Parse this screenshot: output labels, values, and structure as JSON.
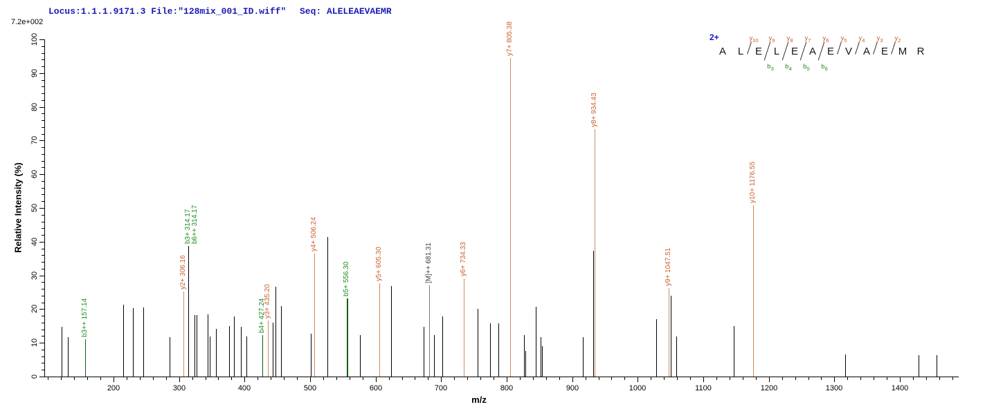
{
  "header": {
    "locus_file": "Locus:1.1.1.9171.3 File:\"128mix_001_ID.wiff\"",
    "seq": "Seq: ALELEAEVAEMR",
    "max_intensity": "7.2e+002"
  },
  "colors": {
    "header_blue": "#1b1bb4",
    "charge_blue": "#1414d2",
    "peak_black": "#000000",
    "y_label": "#c8602a",
    "y_stem": "#cf8a5a",
    "b_label": "#1e8a1e",
    "b_stem": "#0a600a",
    "precursor_label": "#3c3c3c",
    "precursor_stem": "#777777",
    "y_seq_label": "#cc5533",
    "b_seq_label": "#1e8a1e"
  },
  "chart_data": {
    "type": "bar",
    "title": "",
    "xlabel": "m/z",
    "ylabel": "Relative  Intensity (%)",
    "x_range": [
      95,
      1490
    ],
    "x_major_tick_start": 200,
    "x_major_tick_end": 1400,
    "x_major_tick_step": 100,
    "x_minor_tick_step": 20,
    "y_range": [
      0,
      100
    ],
    "y_major_tick_step": 10,
    "y_minor_tick_step": 2,
    "full_scale_counts": "7.2e+002",
    "legend": "none",
    "grid": "off",
    "peaks": [
      {
        "mz": 121.0,
        "intensity": 14.8
      },
      {
        "mz": 130.0,
        "intensity": 11.7
      },
      {
        "mz": 157.14,
        "intensity": 11.0,
        "ion": "b",
        "label": "b3++ 157.14"
      },
      {
        "mz": 215.0,
        "intensity": 21.3
      },
      {
        "mz": 230.0,
        "intensity": 20.2
      },
      {
        "mz": 245.0,
        "intensity": 20.5
      },
      {
        "mz": 286.0,
        "intensity": 11.6
      },
      {
        "mz": 306.16,
        "intensity": 25.2,
        "ion": "y",
        "label": "y2+ 306.16"
      },
      {
        "mz": 314.17,
        "intensity": 38.7,
        "ion": "b",
        "stem": "black",
        "label": "b3+ 314.17",
        "label2": "b6++ 314.17"
      },
      {
        "mz": 324.0,
        "intensity": 18.2
      },
      {
        "mz": 327.0,
        "intensity": 18.2
      },
      {
        "mz": 344.0,
        "intensity": 18.5
      },
      {
        "mz": 347.0,
        "intensity": 11.8
      },
      {
        "mz": 356.0,
        "intensity": 14.2
      },
      {
        "mz": 376.0,
        "intensity": 15.0
      },
      {
        "mz": 384.0,
        "intensity": 17.8
      },
      {
        "mz": 394.0,
        "intensity": 14.8
      },
      {
        "mz": 403.0,
        "intensity": 11.9
      },
      {
        "mz": 427.24,
        "intensity": 12.3,
        "ion": "b",
        "label": "b4+ 427.24"
      },
      {
        "mz": 435.2,
        "intensity": 16.5,
        "ion": "y",
        "label": "y3+ 435.20"
      },
      {
        "mz": 443.0,
        "intensity": 16.0
      },
      {
        "mz": 447.0,
        "intensity": 26.6
      },
      {
        "mz": 456.0,
        "intensity": 20.9
      },
      {
        "mz": 501.0,
        "intensity": 12.7
      },
      {
        "mz": 506.24,
        "intensity": 36.5,
        "ion": "y",
        "label": "y4+ 506.24"
      },
      {
        "mz": 526.0,
        "intensity": 41.4
      },
      {
        "mz": 556.3,
        "intensity": 23.2,
        "ion": "b",
        "wide": true,
        "label": "b5+ 556.30"
      },
      {
        "mz": 576.0,
        "intensity": 12.3
      },
      {
        "mz": 605.3,
        "intensity": 27.7,
        "ion": "y",
        "label": "y5+ 605.30"
      },
      {
        "mz": 624.0,
        "intensity": 26.8
      },
      {
        "mz": 673.0,
        "intensity": 14.7
      },
      {
        "mz": 681.31,
        "intensity": 27.0,
        "ion": "M",
        "label": "[M]++ 681.31"
      },
      {
        "mz": 689.0,
        "intensity": 12.3
      },
      {
        "mz": 702.0,
        "intensity": 17.8
      },
      {
        "mz": 734.33,
        "intensity": 29.0,
        "ion": "y",
        "label": "y6+ 734.33"
      },
      {
        "mz": 756.0,
        "intensity": 20.1
      },
      {
        "mz": 775.0,
        "intensity": 15.8
      },
      {
        "mz": 787.0,
        "intensity": 15.8
      },
      {
        "mz": 805.38,
        "intensity": 94.5,
        "ion": "y",
        "label": "y7+ 805.38"
      },
      {
        "mz": 826.5,
        "intensity": 12.3
      },
      {
        "mz": 828.5,
        "intensity": 7.6
      },
      {
        "mz": 844.0,
        "intensity": 20.7
      },
      {
        "mz": 851.5,
        "intensity": 11.6
      },
      {
        "mz": 853.5,
        "intensity": 9.0
      },
      {
        "mz": 916.0,
        "intensity": 11.6
      },
      {
        "mz": 932.0,
        "intensity": 37.3
      },
      {
        "mz": 934.43,
        "intensity": 73.4,
        "ion": "y",
        "label": "y8+ 934.43"
      },
      {
        "mz": 1028.0,
        "intensity": 17.0
      },
      {
        "mz": 1047.51,
        "intensity": 26.2,
        "ion": "y",
        "label": "y9+ 1047.51"
      },
      {
        "mz": 1050.0,
        "intensity": 24.0
      },
      {
        "mz": 1059.0,
        "intensity": 11.9
      },
      {
        "mz": 1146.0,
        "intensity": 15.0
      },
      {
        "mz": 1176.55,
        "intensity": 50.8,
        "ion": "y",
        "label": "y10+ 1176.55"
      },
      {
        "mz": 1316.0,
        "intensity": 6.6
      },
      {
        "mz": 1428.0,
        "intensity": 6.4
      },
      {
        "mz": 1456.0,
        "intensity": 6.4
      }
    ]
  },
  "sequence_panel": {
    "charge_label": "2+",
    "residues": [
      "A",
      "L",
      "E",
      "L",
      "E",
      "A",
      "E",
      "V",
      "A",
      "E",
      "M",
      "R"
    ],
    "y_ions": [
      {
        "after_residue": 2,
        "label": "y",
        "sub": "10"
      },
      {
        "after_residue": 3,
        "label": "y",
        "sub": "9"
      },
      {
        "after_residue": 4,
        "label": "y",
        "sub": "8"
      },
      {
        "after_residue": 5,
        "label": "y",
        "sub": "7"
      },
      {
        "after_residue": 6,
        "label": "y",
        "sub": "6"
      },
      {
        "after_residue": 7,
        "label": "y",
        "sub": "5"
      },
      {
        "after_residue": 8,
        "label": "y",
        "sub": "4"
      },
      {
        "after_residue": 9,
        "label": "y",
        "sub": "3"
      },
      {
        "after_residue": 10,
        "label": "y",
        "sub": "2"
      }
    ],
    "b_ions": [
      {
        "after_residue": 3,
        "label": "b",
        "sub": "3"
      },
      {
        "after_residue": 4,
        "label": "b",
        "sub": "4"
      },
      {
        "after_residue": 5,
        "label": "b",
        "sub": "5"
      },
      {
        "after_residue": 6,
        "label": "b",
        "sub": "6"
      }
    ]
  }
}
